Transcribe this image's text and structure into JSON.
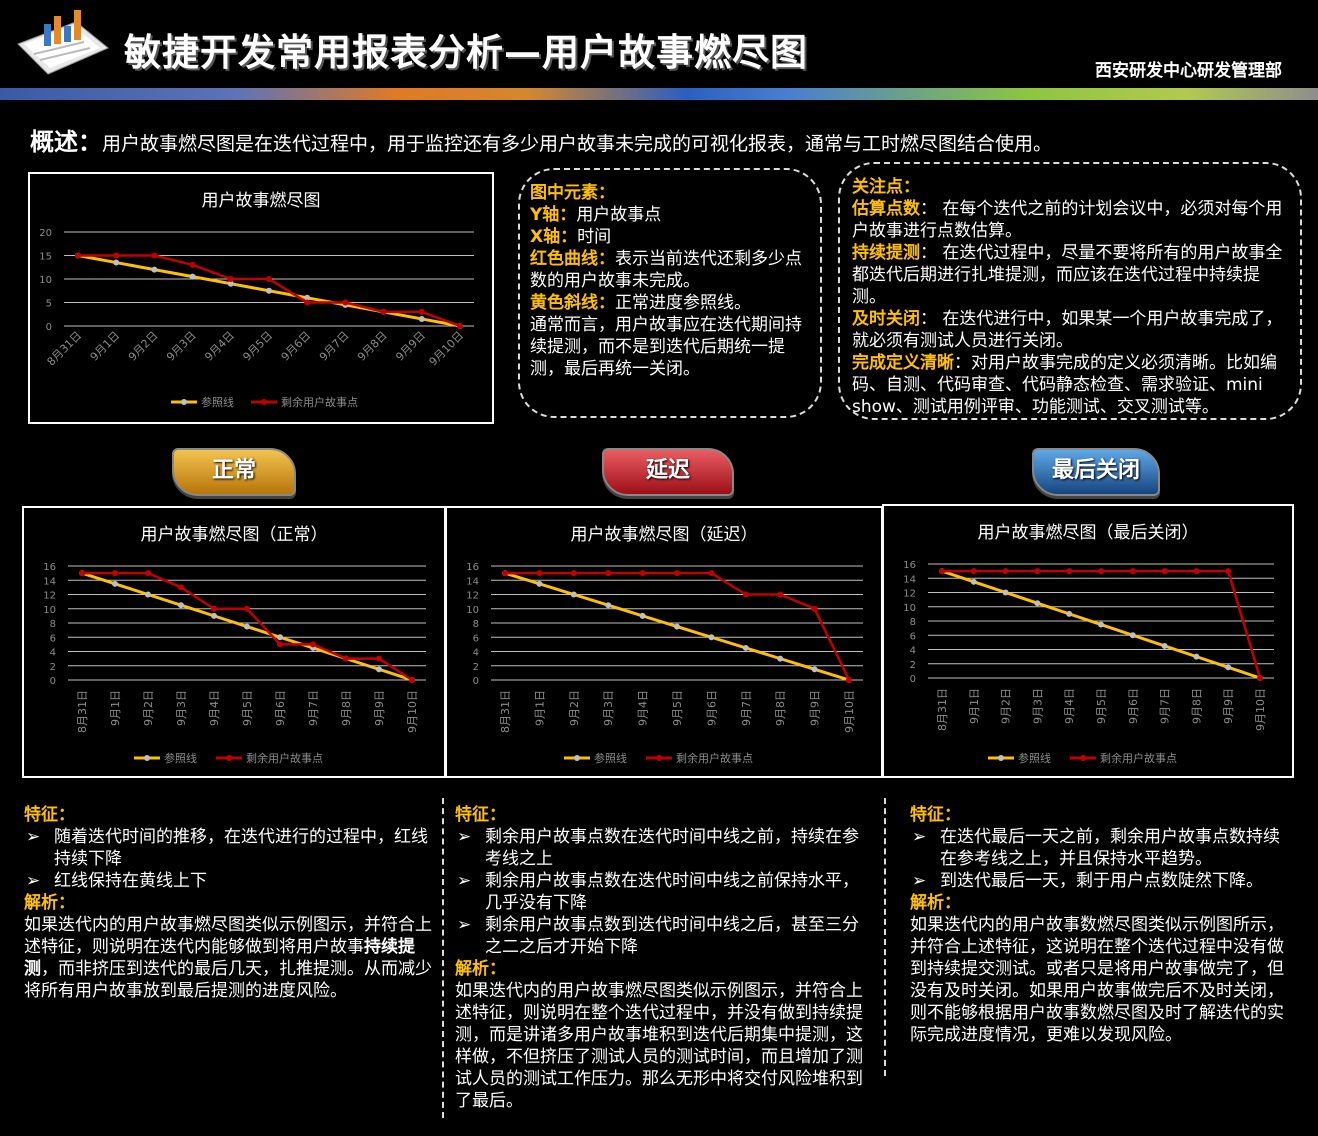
{
  "header": {
    "title": "敏捷开发常用报表分析—用户故事燃尽图",
    "department": "西安研发中心研发管理部"
  },
  "overview": {
    "label": "概述：",
    "text": "用户故事燃尽图是在迭代过程中，用于监控还有多少用户故事未完成的可视化报表，通常与工时燃尽图结合使用。"
  },
  "elements": {
    "heading": "图中元素：",
    "y_label": "Y轴：",
    "y_text": "用户故事点",
    "x_label": "X轴：",
    "x_text": "时间",
    "red_label": "红色曲线：",
    "red_text": "表示当前迭代还剩多少点数的用户故事未完成。",
    "yellow_label": "黄色斜线：",
    "yellow_text": "正常进度参照线。",
    "note": "通常而言，用户故事应在迭代期间持续提测，而不是到迭代后期统一提测，最后再统一关闭。"
  },
  "focus": {
    "heading": "关注点：",
    "i1_label": "估算点数",
    "i1_text": "：  在每个迭代之前的计划会议中，必须对每个用户故事进行点数估算。",
    "i2_label": "持续提测",
    "i2_text": "：  在迭代过程中，尽量不要将所有的用户故事全都迭代后期进行扎堆提测，而应该在迭代过程中持续提测。",
    "i3_label": "及时关闭",
    "i3_text": "：  在迭代进行中，如果某一个用户故事完成了，就必须有测试人员进行关闭。",
    "i4_label": "完成定义清晰",
    "i4_text": "：对用户故事完成的定义必须清晰。比如编码、自测、代码审查、代码静态检查、需求验证、mini show、测试用例评审、功能测试、交叉测试等。"
  },
  "buttons": {
    "normal": "正常",
    "delay": "延迟",
    "last": "最后关闭"
  },
  "chart_data": [
    {
      "type": "line",
      "title": "用户故事燃尽图",
      "categories": [
        "8月31日",
        "9月1日",
        "9月2日",
        "9月3日",
        "9月4日",
        "9月5日",
        "9月6日",
        "9月7日",
        "9月8日",
        "9月9日",
        "9月10日"
      ],
      "ylim": [
        0,
        20
      ],
      "yticks": [
        0,
        5,
        10,
        15,
        20
      ],
      "series": [
        {
          "name": "参照线",
          "color": "#ffc000",
          "values": [
            15,
            13.5,
            12,
            10.5,
            9,
            7.5,
            6,
            4.5,
            3,
            1.5,
            0
          ]
        },
        {
          "name": "剩余用户故事点",
          "color": "#c00000",
          "values": [
            15,
            15,
            15,
            13,
            10,
            10,
            5,
            5,
            3,
            3,
            0
          ]
        }
      ],
      "legend": "bottom"
    },
    {
      "type": "line",
      "title": "用户故事燃尽图（正常）",
      "categories": [
        "8月31日",
        "9月1日",
        "9月2日",
        "9月3日",
        "9月4日",
        "9月5日",
        "9月6日",
        "9月7日",
        "9月8日",
        "9月9日",
        "9月10日"
      ],
      "ylim": [
        0,
        16
      ],
      "yticks": [
        0,
        2,
        4,
        6,
        8,
        10,
        12,
        14,
        16
      ],
      "series": [
        {
          "name": "参照线",
          "color": "#ffc000",
          "values": [
            15,
            13.5,
            12,
            10.5,
            9,
            7.5,
            6,
            4.5,
            3,
            1.5,
            0
          ]
        },
        {
          "name": "剩余用户故事点",
          "color": "#c00000",
          "values": [
            15,
            15,
            15,
            13,
            10,
            10,
            5,
            5,
            3,
            3,
            0
          ]
        }
      ],
      "legend": "bottom"
    },
    {
      "type": "line",
      "title": "用户故事燃尽图（延迟）",
      "categories": [
        "8月31日",
        "9月1日",
        "9月2日",
        "9月3日",
        "9月4日",
        "9月5日",
        "9月6日",
        "9月7日",
        "9月8日",
        "9月9日",
        "9月10日"
      ],
      "ylim": [
        0,
        16
      ],
      "yticks": [
        0,
        2,
        4,
        6,
        8,
        10,
        12,
        14,
        16
      ],
      "series": [
        {
          "name": "参照线",
          "color": "#ffc000",
          "values": [
            15,
            13.5,
            12,
            10.5,
            9,
            7.5,
            6,
            4.5,
            3,
            1.5,
            0
          ]
        },
        {
          "name": "剩余用户故事点",
          "color": "#c00000",
          "values": [
            15,
            15,
            15,
            15,
            15,
            15,
            15,
            12,
            12,
            10,
            0
          ]
        }
      ],
      "legend": "bottom"
    },
    {
      "type": "line",
      "title": "用户故事燃尽图（最后关闭）",
      "categories": [
        "8月31日",
        "9月1日",
        "9月2日",
        "9月3日",
        "9月4日",
        "9月5日",
        "9月6日",
        "9月7日",
        "9月8日",
        "9月9日",
        "9月10日"
      ],
      "ylim": [
        0,
        16
      ],
      "yticks": [
        0,
        2,
        4,
        6,
        8,
        10,
        12,
        14,
        16
      ],
      "series": [
        {
          "name": "参照线",
          "color": "#ffc000",
          "values": [
            15,
            13.5,
            12,
            10.5,
            9,
            7.5,
            6,
            4.5,
            3,
            1.5,
            0
          ]
        },
        {
          "name": "剩余用户故事点",
          "color": "#c00000",
          "values": [
            15,
            15,
            15,
            15,
            15,
            15,
            15,
            15,
            15,
            15,
            0
          ]
        }
      ],
      "legend": "bottom"
    }
  ],
  "col1": {
    "feature_head": "特征：",
    "b1": "随着迭代时间的推移，在迭代进行的过程中，红线持续下降",
    "b2": "红线保持在黄线上下",
    "analysis_head": "解析：",
    "a_pre": "如果迭代内的用户故事燃尽图类似示例图示，并符合上述特征，则说明在迭代内能够做到将用户故事",
    "a_bold": "持续提测",
    "a_post": "，而非挤压到迭代的最后几天，扎推提测。从而减少将所有用户故事放到最后提测的进度风险。"
  },
  "col2": {
    "feature_head": "特征：",
    "b1": "剩余用户故事点数在迭代时间中线之前，持续在参考线之上",
    "b2": "剩余用户故事点数在迭代时间中线之前保持水平，几乎没有下降",
    "b3": "剩余用户故事点数到迭代时间中线之后，甚至三分之二之后才开始下降",
    "analysis_head": "解析：",
    "analysis": "如果迭代内的用户故事燃尽图类似示例图示，并符合上述特征，则说明在整个迭代过程中，并没有做到持续提测，而是讲诸多用户故事堆积到迭代后期集中提测，这样做，不但挤压了测试人员的测试时间，而且增加了测试人员的测试工作压力。那么无形中将交付风险堆积到了最后。"
  },
  "col3": {
    "feature_head": "特征：",
    "b1": "在迭代最后一天之前，剩余用户故事点数持续在参考线之上，并且保持水平趋势。",
    "b2": "到迭代最后一天，剩于用户点数陡然下降。",
    "analysis_head": "解析：",
    "analysis": "如果迭代内的用户故事数燃尽图类似示例图所示，并符合上述特征，这说明在整个迭代过程中没有做到持续提交测试。或者只是将用户故事做完了，但没有及时关闭。如果用户故事做完后不及时关闭，则不能够根据用户故事数燃尽图及时了解迭代的实际完成进度情况，更难以发现风险。"
  }
}
